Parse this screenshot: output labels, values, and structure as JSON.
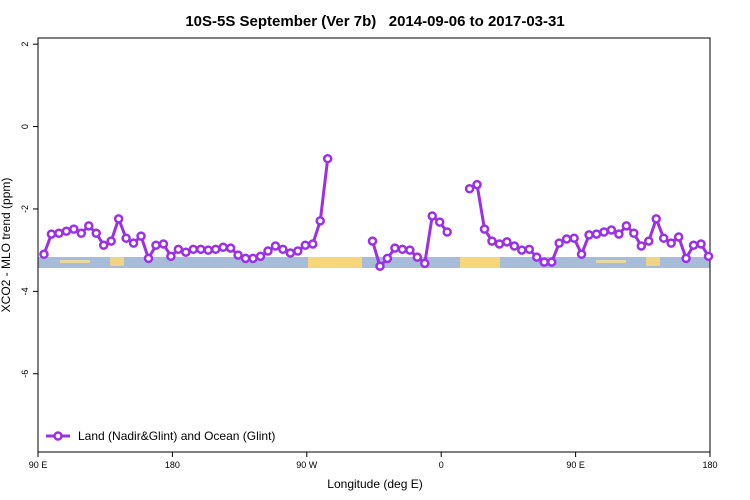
{
  "chart_data": {
    "type": "line",
    "title": "10S-5S September (Ver 7b)   2014-09-06 to 2017-03-31",
    "x_label": "Longitude (deg E)",
    "y_label": "XCO2 - MLO trend (ppm)",
    "x": [
      94,
      99,
      104,
      109,
      114,
      119,
      124,
      129,
      134,
      139,
      144,
      149,
      154,
      159,
      164,
      169,
      174,
      179,
      184,
      189,
      194,
      199,
      204,
      209,
      214,
      219,
      224,
      229,
      234,
      239,
      244,
      249,
      254,
      259,
      264,
      269,
      274,
      279,
      284,
      289,
      294,
      299,
      304,
      309,
      314,
      319,
      324,
      329,
      334,
      339,
      344,
      349,
      354,
      359,
      364,
      369,
      374,
      379,
      384,
      389,
      394,
      399,
      404,
      409,
      414,
      419,
      424,
      429,
      434,
      439,
      444,
      449,
      454,
      459,
      464,
      469,
      474,
      479,
      484,
      489,
      494,
      499,
      504,
      509,
      514,
      519,
      524,
      529,
      534,
      539
    ],
    "series": [
      {
        "name": "Land (Nadir&Glint) and Ocean (Glint)",
        "color": "#9b30e6",
        "values": [
          -3.1,
          -2.61,
          -2.59,
          -2.54,
          -2.49,
          -2.59,
          -2.41,
          -2.59,
          -2.88,
          -2.78,
          -2.24,
          -2.71,
          -2.83,
          -2.66,
          -3.2,
          -2.88,
          -2.85,
          -3.15,
          -2.98,
          -3.05,
          -2.98,
          -2.98,
          -3.0,
          -2.98,
          -2.93,
          -2.95,
          -3.12,
          -3.2,
          -3.2,
          -3.15,
          -3.02,
          -2.9,
          -2.98,
          -3.07,
          -3.02,
          -2.88,
          -2.85,
          -2.29,
          -0.78,
          null,
          null,
          null,
          null,
          null,
          -2.78,
          -3.39,
          -3.2,
          -2.95,
          -2.98,
          -3.0,
          -3.17,
          -3.32,
          -2.17,
          -2.32,
          -2.56,
          null,
          null,
          -1.51,
          -1.41,
          -2.49,
          -2.78,
          -2.85,
          -2.8,
          -2.9,
          -3.0,
          -2.98,
          -3.17,
          -3.29,
          -3.29,
          -2.83,
          -2.73,
          -2.71,
          -3.1,
          -2.63,
          -2.61,
          -2.56,
          -2.51,
          -2.61,
          -2.41,
          -2.59,
          -2.9,
          -2.78,
          -2.24,
          -2.71,
          -2.83,
          -2.68,
          -3.2,
          -2.88,
          -2.85,
          -3.15
        ]
      }
    ],
    "xlim": [
      90,
      540
    ],
    "xticks": [
      {
        "value": 90,
        "label": "90 E"
      },
      {
        "value": 180,
        "label": "180"
      },
      {
        "value": 270,
        "label": "90 W"
      },
      {
        "value": 360,
        "label": "0"
      },
      {
        "value": 450,
        "label": "90 E"
      },
      {
        "value": 540,
        "label": "180"
      }
    ],
    "ylim": [
      -7.9,
      2.15
    ],
    "yticks": [
      -6,
      -4,
      -2,
      0,
      2
    ],
    "legend": "bottom-left"
  }
}
